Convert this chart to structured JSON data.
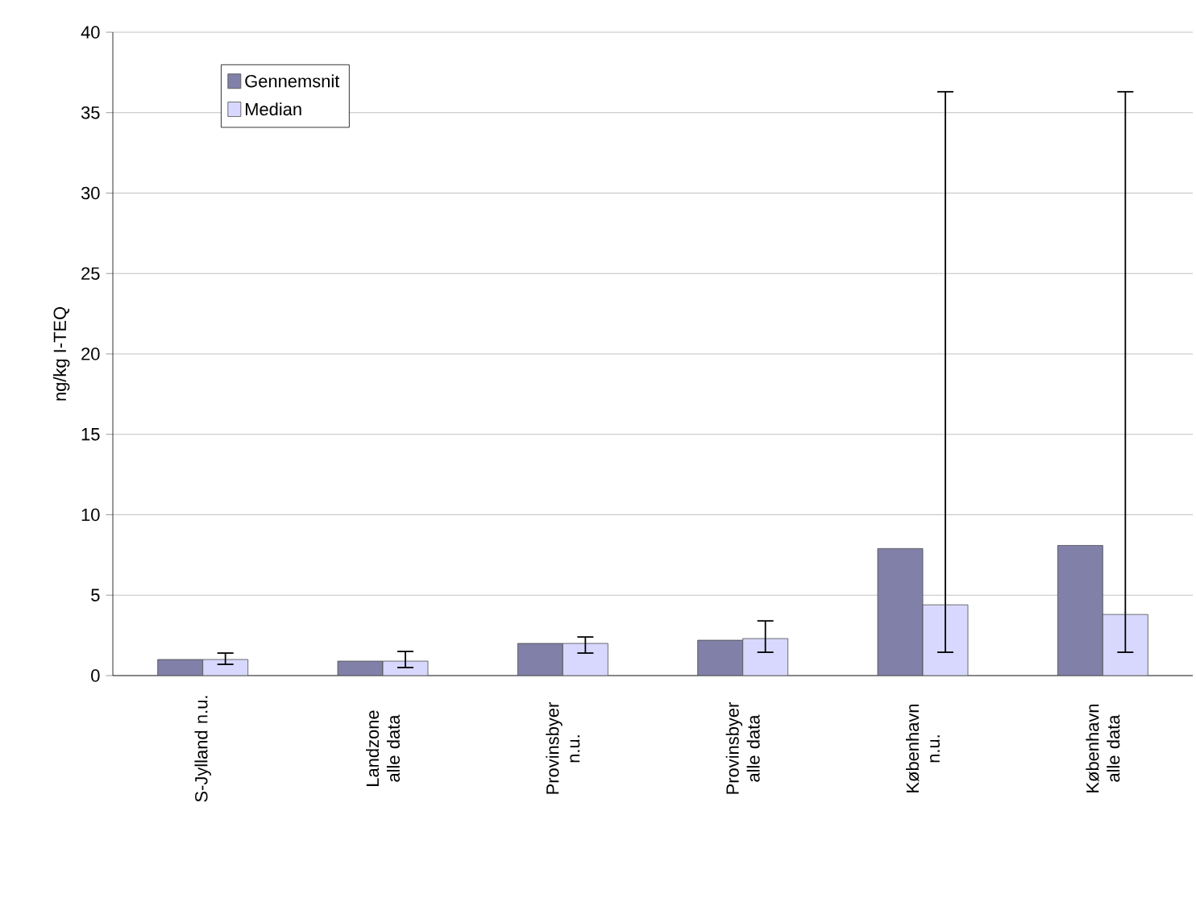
{
  "chart_data": {
    "type": "bar",
    "ylabel": "ng/kg I-TEQ",
    "categories": [
      "S-Jylland  n.u.",
      "Landzone alle data",
      "Provinsbyer n.u.",
      "Provinsbyer alle data",
      "København n.u.",
      "København alle data"
    ],
    "series": [
      {
        "name": "Gennemsnit",
        "color": "#8080a8",
        "values": [
          1.0,
          0.9,
          2.0,
          2.2,
          7.9,
          8.1
        ]
      },
      {
        "name": "Median",
        "color": "#d8d8ff",
        "values": [
          1.0,
          0.9,
          2.0,
          2.3,
          4.4,
          3.8
        ],
        "errors": [
          [
            0.7,
            1.4
          ],
          [
            0.5,
            1.5
          ],
          [
            1.4,
            2.4
          ],
          [
            1.45,
            3.4
          ],
          [
            1.45,
            36.3
          ],
          [
            1.45,
            36.3
          ]
        ]
      }
    ],
    "ylim": [
      0,
      40
    ],
    "yticks": [
      0,
      5,
      10,
      15,
      20,
      25,
      30,
      35,
      40
    ],
    "grid": "y",
    "legend": "top left"
  }
}
